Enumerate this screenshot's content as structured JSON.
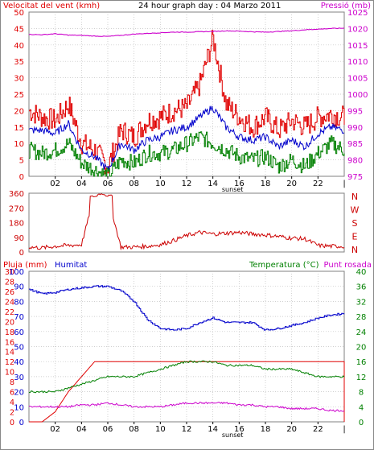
{
  "colors": {
    "wind": "#e00000",
    "gust": "#e00000",
    "avg": "#008000",
    "direction": "#cc0000",
    "pressure": "#cc00cc",
    "rain": "#e00000",
    "humidity": "#0000cc",
    "temperature": "#008000",
    "dewpoint": "#cc00cc",
    "grid": "#c0c0c0"
  },
  "chart_data": [
    {
      "type": "line",
      "title": "24 hour graph day : 04 Marzo 2011",
      "left_axis_label": "Velocitat del vent (kmh)",
      "right_axis_label": "Pressió (mb)",
      "x_ticks": [
        "02",
        "04",
        "06",
        "08",
        "10",
        "12",
        "14",
        "16",
        "18",
        "20",
        "22"
      ],
      "x_sub_label": "sunset",
      "ylim_left": [
        0,
        50
      ],
      "yticks_left": [
        "0",
        "5",
        "10",
        "15",
        "20",
        "25",
        "30",
        "35",
        "40",
        "45",
        "50"
      ],
      "ylim_right": [
        975,
        1025
      ],
      "yticks_right": [
        "975",
        "980",
        "985",
        "990",
        "995",
        "1000",
        "1005",
        "1010",
        "1015",
        "1020",
        "1025"
      ],
      "grid": true,
      "x": [
        0,
        1,
        2,
        3,
        4,
        5,
        6,
        7,
        8,
        9,
        10,
        11,
        12,
        13,
        14,
        15,
        16,
        17,
        18,
        19,
        20,
        21,
        22,
        23,
        24
      ],
      "series": [
        {
          "key": "gust",
          "axis": "left",
          "values": [
            20,
            18,
            17,
            22,
            10,
            8,
            3,
            14,
            12,
            17,
            18,
            20,
            21,
            28,
            42,
            22,
            18,
            15,
            18,
            14,
            17,
            15,
            18,
            19,
            18
          ]
        },
        {
          "key": "avg",
          "axis": "left",
          "values": [
            14,
            14,
            13,
            16,
            8,
            6,
            2,
            10,
            8,
            11,
            12,
            14,
            15,
            18,
            21,
            15,
            12,
            11,
            12,
            9,
            11,
            9,
            13,
            15,
            14
          ]
        },
        {
          "key": "low",
          "axis": "left",
          "values": [
            8,
            7,
            8,
            10,
            4,
            2,
            0,
            5,
            4,
            7,
            7,
            8,
            10,
            12,
            10,
            8,
            6,
            5,
            6,
            3,
            5,
            3,
            7,
            10,
            8
          ]
        },
        {
          "key": "pressure",
          "axis": "right",
          "values": [
            1018.2,
            1018.1,
            1018.4,
            1018.0,
            1017.9,
            1017.7,
            1017.6,
            1017.9,
            1018.3,
            1018.5,
            1018.7,
            1018.9,
            1018.9,
            1019.0,
            1019.1,
            1019.3,
            1019.2,
            1019.0,
            1018.9,
            1019.1,
            1019.3,
            1019.6,
            1019.8,
            1020.0,
            1020.1
          ]
        }
      ]
    },
    {
      "type": "line",
      "right_axis_label": "N W S E N",
      "right_letters": [
        "N",
        "W",
        "S",
        "E",
        "N"
      ],
      "ylim": [
        0,
        360
      ],
      "yticks": [
        "0",
        "90",
        "180",
        "270",
        "360"
      ],
      "x": [
        0,
        1,
        2,
        3,
        4,
        5,
        6,
        7,
        8,
        9,
        10,
        11,
        12,
        13,
        14,
        15,
        16,
        17,
        18,
        19,
        20,
        21,
        22,
        23,
        24
      ],
      "series": [
        {
          "key": "direction",
          "values": [
            30,
            25,
            35,
            40,
            45,
            350,
            340,
            30,
            30,
            35,
            45,
            70,
            100,
            120,
            110,
            115,
            120,
            110,
            105,
            95,
            85,
            80,
            40,
            35,
            35
          ]
        }
      ]
    },
    {
      "type": "line",
      "left_axis_label": "Pluja (mm)",
      "second_left_label": "Humitat",
      "right_axis_label": "Temperatura (°C)",
      "second_right_label": "Punt rosada",
      "x_ticks": [
        "02",
        "04",
        "06",
        "08",
        "10",
        "12",
        "14",
        "16",
        "18",
        "20",
        "22"
      ],
      "x_sub_label": "sunset",
      "ylim_rain": [
        0,
        30
      ],
      "yticks_rain": [
        "0",
        "2",
        "4",
        "6",
        "8",
        "10",
        "12",
        "14",
        "16",
        "18",
        "20",
        "22",
        "24",
        "26",
        "28",
        "30"
      ],
      "ylim_hum": [
        0,
        100
      ],
      "yticks_hum": [
        "0",
        "10",
        "20",
        "30",
        "40",
        "50",
        "60",
        "70",
        "80",
        "90",
        "100"
      ],
      "ylim_temp": [
        0,
        40
      ],
      "yticks_temp": [
        "0",
        "4",
        "8",
        "12",
        "16",
        "20",
        "24",
        "28",
        "32",
        "36",
        "40"
      ],
      "grid": true,
      "x": [
        0,
        1,
        2,
        3,
        4,
        5,
        6,
        7,
        8,
        9,
        10,
        11,
        12,
        13,
        14,
        15,
        16,
        17,
        18,
        19,
        20,
        21,
        22,
        23,
        24
      ],
      "series": [
        {
          "key": "rain",
          "axis": "rain",
          "values": [
            0,
            0,
            2,
            6,
            9,
            12,
            12,
            12,
            12,
            12,
            12,
            12,
            12,
            12,
            12,
            12,
            12,
            12,
            12,
            12,
            12,
            12,
            12,
            12,
            12
          ]
        },
        {
          "key": "humidity",
          "axis": "hum",
          "values": [
            88,
            85,
            86,
            88,
            89,
            90,
            90,
            87,
            80,
            68,
            62,
            61,
            62,
            66,
            69,
            66,
            66,
            66,
            61,
            62,
            64,
            66,
            69,
            71,
            72
          ]
        },
        {
          "key": "temperature",
          "axis": "temp",
          "values": [
            8,
            8,
            8,
            9,
            10,
            11,
            12,
            12,
            12,
            13,
            14,
            15,
            16,
            16,
            16,
            15,
            15,
            15,
            14,
            14,
            14,
            13,
            12,
            12,
            12
          ]
        },
        {
          "key": "dewpoint",
          "axis": "temp",
          "values": [
            4,
            4,
            4,
            4,
            4.5,
            4.5,
            5,
            4.5,
            4,
            4,
            4,
            4.5,
            5,
            5,
            5,
            5,
            4.5,
            4.5,
            4,
            4,
            3.5,
            3.5,
            3.5,
            3,
            3
          ]
        }
      ]
    }
  ]
}
